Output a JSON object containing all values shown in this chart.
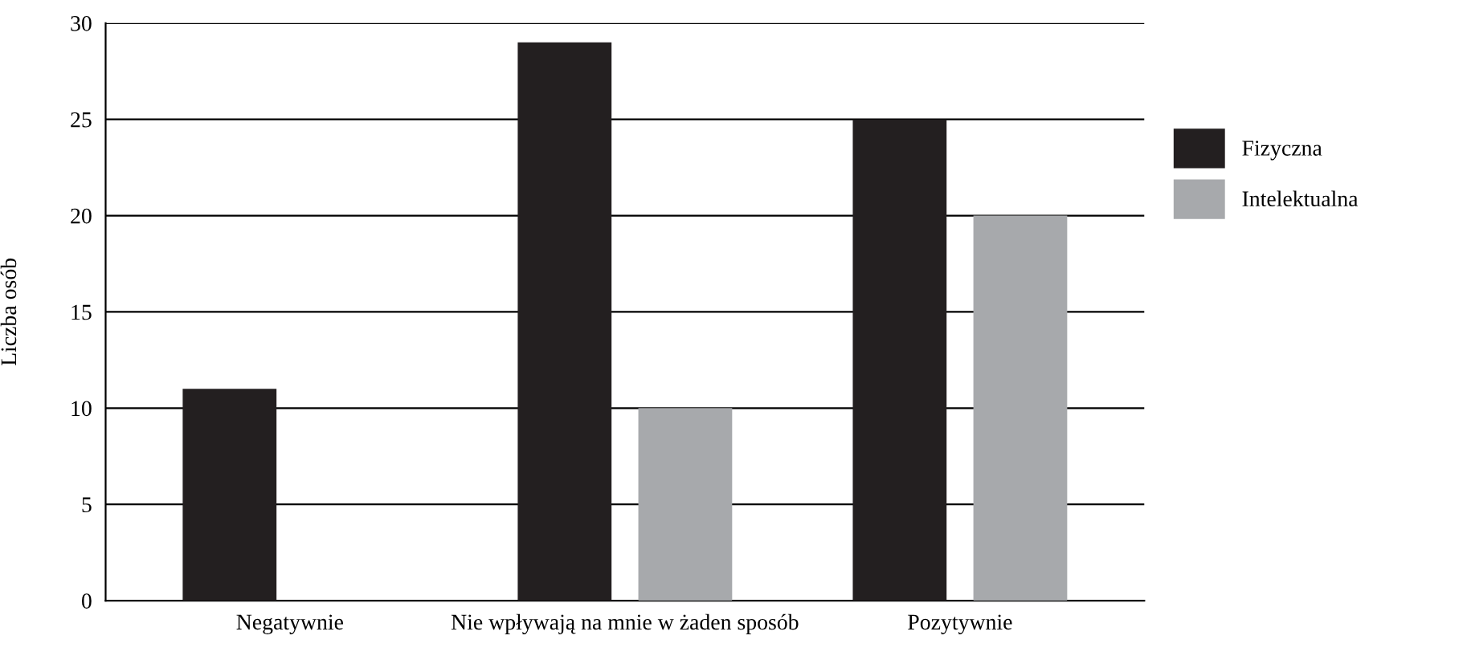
{
  "chart_data": {
    "type": "bar",
    "ylabel": "Liczba osób",
    "categories": [
      "Negatywnie",
      "Nie wpływają na mnie w żaden sposób",
      "Pozytywnie"
    ],
    "series": [
      {
        "name": "Fizyczna",
        "color": "#231f20",
        "values": [
          11,
          29,
          25
        ]
      },
      {
        "name": "Intelektualna",
        "color": "#a7a9ac",
        "values": [
          0,
          10,
          20
        ]
      }
    ],
    "ylim": [
      0,
      30
    ],
    "yticks": [
      0,
      5,
      10,
      15,
      20,
      25,
      30
    ],
    "grid": "y",
    "legend": "right"
  }
}
